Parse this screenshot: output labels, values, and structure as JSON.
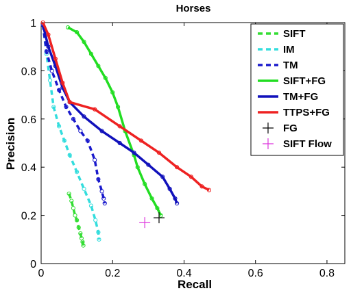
{
  "chart_data": {
    "type": "line",
    "title": "Horses",
    "xlabel": "Recall",
    "ylabel": "Precision",
    "xlim": [
      0,
      0.85
    ],
    "ylim": [
      0,
      1
    ],
    "xticks": [
      "0",
      "0.2",
      "0.4",
      "0.6",
      "0.8"
    ],
    "yticks": [
      "0",
      "0.2",
      "0.4",
      "0.6",
      "0.8",
      "1"
    ],
    "legend_position": "top-right",
    "grid": false,
    "series": [
      {
        "name": "SIFT",
        "color": "#33dd33",
        "style": "dashed",
        "marker": "circle",
        "points": [
          [
            0.078,
            0.29
          ],
          [
            0.085,
            0.26
          ],
          [
            0.09,
            0.23
          ],
          [
            0.095,
            0.2
          ],
          [
            0.1,
            0.18
          ],
          [
            0.105,
            0.15
          ],
          [
            0.11,
            0.125
          ],
          [
            0.113,
            0.105
          ],
          [
            0.116,
            0.09
          ],
          [
            0.118,
            0.075
          ]
        ]
      },
      {
        "name": "IM",
        "color": "#33dddd",
        "style": "dashed",
        "marker": "circle",
        "points": [
          [
            0.005,
            0.99
          ],
          [
            0.015,
            0.87
          ],
          [
            0.025,
            0.76
          ],
          [
            0.035,
            0.65
          ],
          [
            0.05,
            0.57
          ],
          [
            0.065,
            0.51
          ],
          [
            0.08,
            0.45
          ],
          [
            0.1,
            0.38
          ],
          [
            0.12,
            0.31
          ],
          [
            0.14,
            0.24
          ],
          [
            0.152,
            0.18
          ],
          [
            0.16,
            0.13
          ],
          [
            0.162,
            0.1
          ]
        ]
      },
      {
        "name": "TM",
        "color": "#1a1acc",
        "style": "dashed",
        "marker": "circle",
        "points": [
          [
            0.005,
            0.99
          ],
          [
            0.015,
            0.88
          ],
          [
            0.03,
            0.8
          ],
          [
            0.05,
            0.72
          ],
          [
            0.07,
            0.65
          ],
          [
            0.09,
            0.6
          ],
          [
            0.11,
            0.55
          ],
          [
            0.13,
            0.51
          ],
          [
            0.15,
            0.43
          ],
          [
            0.16,
            0.35
          ],
          [
            0.17,
            0.3
          ],
          [
            0.175,
            0.27
          ],
          [
            0.178,
            0.25
          ]
        ]
      },
      {
        "name": "SIFT+FG",
        "color": "#22dd22",
        "style": "solid",
        "marker": "circle",
        "points": [
          [
            0.075,
            0.98
          ],
          [
            0.1,
            0.96
          ],
          [
            0.12,
            0.92
          ],
          [
            0.14,
            0.87
          ],
          [
            0.16,
            0.82
          ],
          [
            0.18,
            0.77
          ],
          [
            0.2,
            0.71
          ],
          [
            0.215,
            0.65
          ],
          [
            0.235,
            0.55
          ],
          [
            0.26,
            0.45
          ],
          [
            0.27,
            0.4
          ],
          [
            0.29,
            0.33
          ],
          [
            0.31,
            0.27
          ],
          [
            0.325,
            0.23
          ],
          [
            0.335,
            0.2
          ]
        ]
      },
      {
        "name": "TM+FG",
        "color": "#1111bb",
        "style": "solid",
        "marker": "circle",
        "points": [
          [
            0.005,
            0.99
          ],
          [
            0.02,
            0.9
          ],
          [
            0.04,
            0.82
          ],
          [
            0.06,
            0.73
          ],
          [
            0.08,
            0.67
          ],
          [
            0.12,
            0.61
          ],
          [
            0.17,
            0.55
          ],
          [
            0.22,
            0.5
          ],
          [
            0.26,
            0.46
          ],
          [
            0.3,
            0.41
          ],
          [
            0.34,
            0.36
          ],
          [
            0.36,
            0.31
          ],
          [
            0.375,
            0.27
          ],
          [
            0.38,
            0.25
          ]
        ]
      },
      {
        "name": "TTPS+FG",
        "color": "#ee2222",
        "style": "solid",
        "marker": "circle",
        "points": [
          [
            0.005,
            1.0
          ],
          [
            0.02,
            0.95
          ],
          [
            0.04,
            0.85
          ],
          [
            0.06,
            0.75
          ],
          [
            0.08,
            0.67
          ],
          [
            0.15,
            0.64
          ],
          [
            0.22,
            0.57
          ],
          [
            0.28,
            0.51
          ],
          [
            0.33,
            0.46
          ],
          [
            0.38,
            0.4
          ],
          [
            0.42,
            0.36
          ],
          [
            0.45,
            0.32
          ],
          [
            0.47,
            0.305
          ]
        ]
      },
      {
        "name": "FG",
        "color": "#000000",
        "style": "none",
        "marker": "plus",
        "points": [
          [
            0.33,
            0.19
          ]
        ]
      },
      {
        "name": "SIFT Flow",
        "color": "#dd33dd",
        "style": "none",
        "marker": "plus",
        "points": [
          [
            0.29,
            0.17
          ]
        ]
      }
    ]
  }
}
